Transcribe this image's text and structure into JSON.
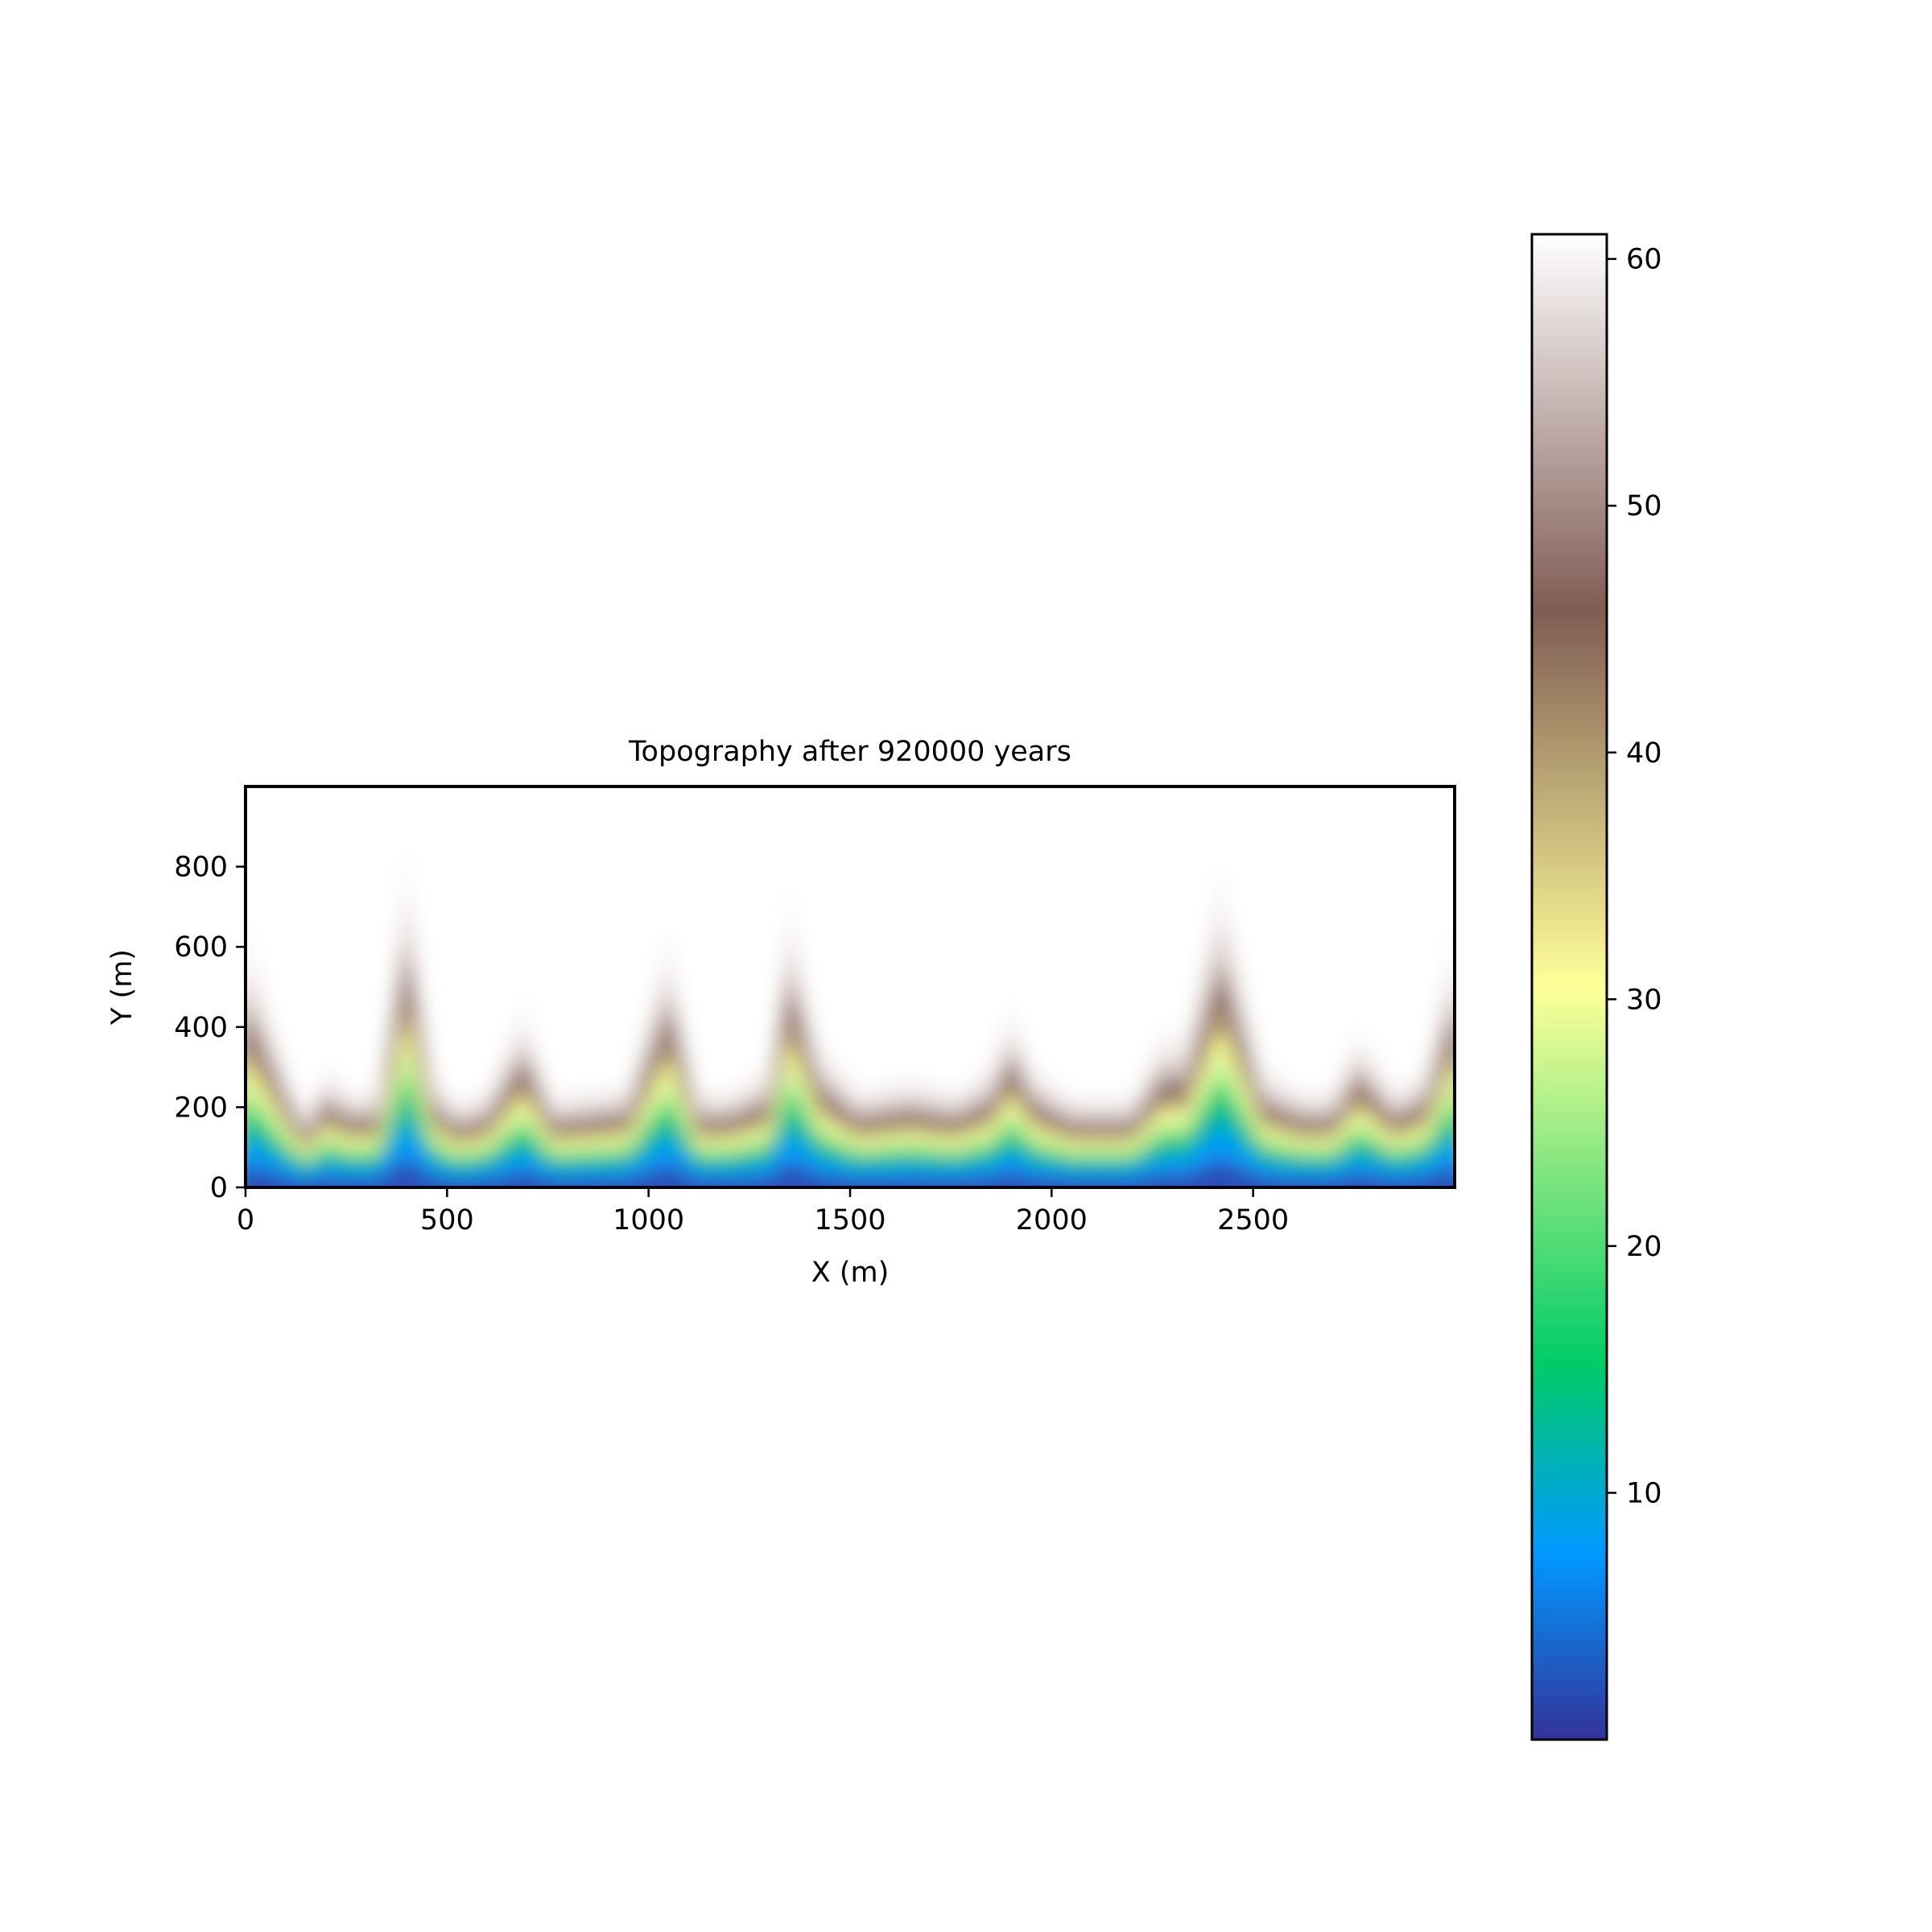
{
  "chart_data": {
    "type": "heatmap",
    "title": "Topography after 920000 years",
    "xlabel": "X (m)",
    "ylabel": "Y (m)",
    "xlim": [
      0,
      3000
    ],
    "ylim": [
      0,
      1000
    ],
    "x_ticks": [
      0,
      500,
      1000,
      1500,
      2000,
      2500
    ],
    "y_ticks": [
      0,
      200,
      400,
      600,
      800
    ],
    "colormap": "terrain",
    "colorbar": {
      "range": [
        0,
        61
      ],
      "ticks": [
        10,
        20,
        30,
        40,
        50,
        60
      ]
    },
    "valley_profile": {
      "x": [
        0,
        100,
        150,
        200,
        250,
        330,
        400,
        460,
        520,
        600,
        690,
        760,
        850,
        950,
        1050,
        1120,
        1200,
        1300,
        1350,
        1420,
        1520,
        1650,
        1760,
        1850,
        1900,
        1950,
        2050,
        2200,
        2280,
        2330,
        2420,
        2520,
        2620,
        2700,
        2760,
        2850,
        2930,
        3000
      ],
      "y": [
        420,
        200,
        120,
        200,
        160,
        160,
        550,
        200,
        140,
        160,
        300,
        150,
        160,
        170,
        420,
        160,
        160,
        200,
        480,
        240,
        160,
        180,
        160,
        200,
        300,
        200,
        150,
        150,
        260,
        240,
        520,
        200,
        160,
        160,
        260,
        160,
        200,
        420
      ]
    },
    "colorbar_gradient": [
      {
        "value": 0,
        "color": "#333399"
      },
      {
        "value": 7.6,
        "color": "#0099ff"
      },
      {
        "value": 15.25,
        "color": "#00cc66"
      },
      {
        "value": 30.5,
        "color": "#ffff99"
      },
      {
        "value": 45.75,
        "color": "#805c54"
      },
      {
        "value": 61,
        "color": "#ffffff"
      }
    ]
  }
}
